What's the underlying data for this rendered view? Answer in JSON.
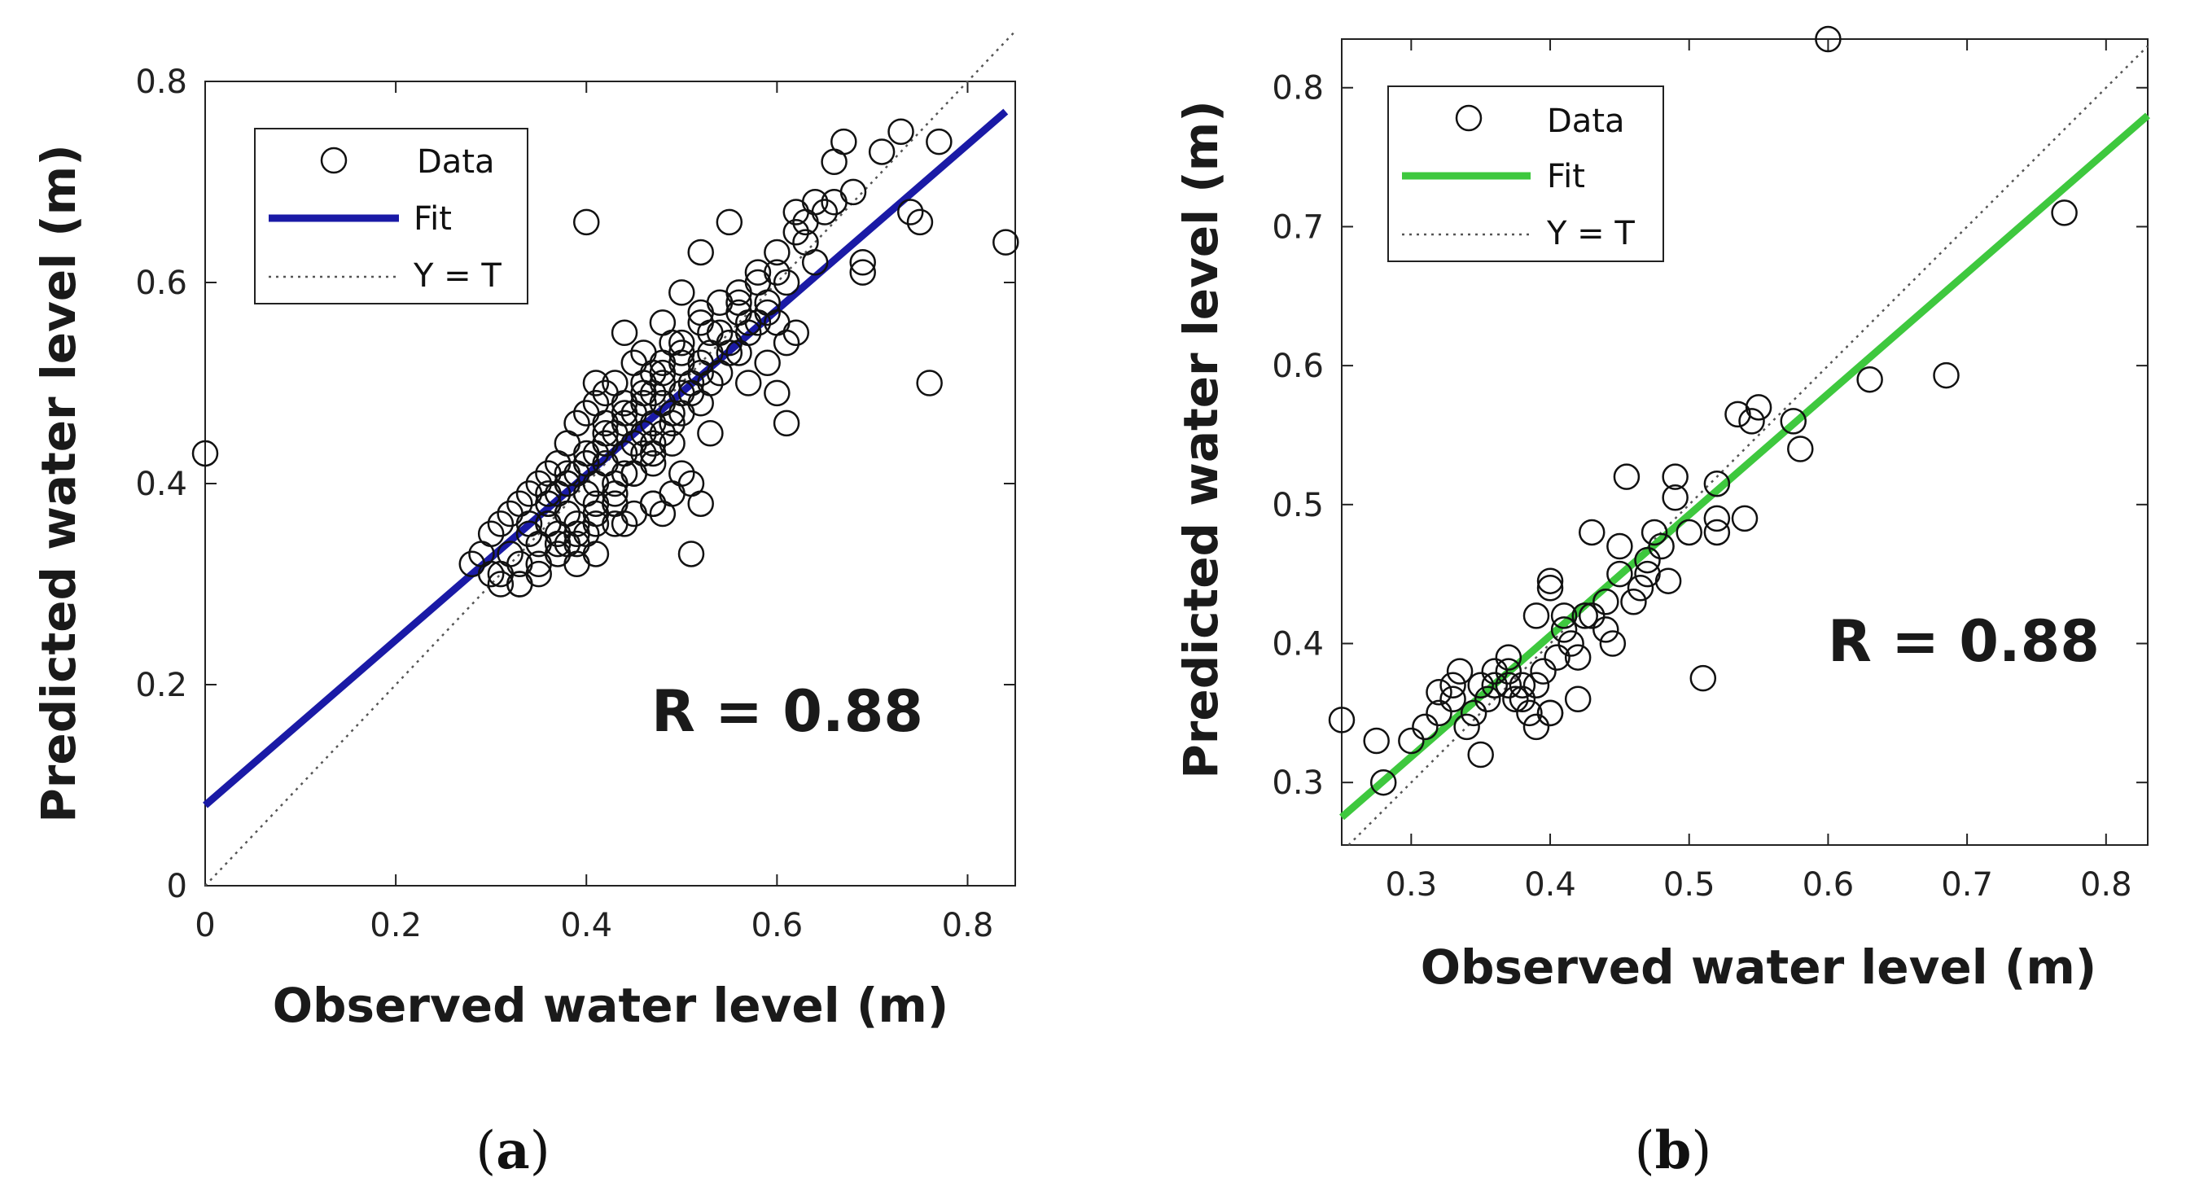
{
  "chart_data": [
    {
      "id": "a",
      "type": "scatter",
      "panel_label": "a",
      "xlabel": "Observed water level (m)",
      "ylabel": "Predicted water level (m)",
      "xlim": [
        0,
        0.85
      ],
      "ylim": [
        0,
        0.8
      ],
      "xticks": [
        0,
        0.2,
        0.4,
        0.6,
        0.8
      ],
      "yticks": [
        0,
        0.2,
        0.4,
        0.6,
        0.8
      ],
      "xtick_labels": [
        "0",
        "0.2",
        "0.4",
        "0.6",
        "0.8"
      ],
      "ytick_labels": [
        "0",
        "0.2",
        "0.4",
        "0.6",
        "0.8"
      ],
      "annotation": "R = 0.88",
      "legend": {
        "placement": "top-left",
        "entries": [
          "Data",
          "Fit",
          "Y = T"
        ]
      },
      "fit": {
        "color": "#1a1aa6",
        "x": [
          0,
          0.84
        ],
        "y": [
          0.08,
          0.77
        ]
      },
      "identity": {
        "x": [
          0,
          0.85
        ],
        "y": [
          0,
          0.85
        ]
      },
      "series": [
        {
          "name": "Data",
          "marker": "circle-open",
          "x": [
            0.0,
            0.4,
            0.84,
            0.76,
            0.74,
            0.73,
            0.77,
            0.71,
            0.75,
            0.66,
            0.67,
            0.69,
            0.69,
            0.62,
            0.63,
            0.64,
            0.6,
            0.61,
            0.58,
            0.62,
            0.59,
            0.6,
            0.56,
            0.55,
            0.58,
            0.52,
            0.53,
            0.5,
            0.48,
            0.49,
            0.46,
            0.47,
            0.44,
            0.45,
            0.43,
            0.42,
            0.41,
            0.4,
            0.39,
            0.38,
            0.37,
            0.36,
            0.35,
            0.34,
            0.33,
            0.32,
            0.31,
            0.3,
            0.29,
            0.28,
            0.3,
            0.31,
            0.33,
            0.35,
            0.36,
            0.38,
            0.4,
            0.41,
            0.42,
            0.44,
            0.46,
            0.47,
            0.48,
            0.5,
            0.51,
            0.52,
            0.53,
            0.55,
            0.57,
            0.56,
            0.54,
            0.52,
            0.49,
            0.47,
            0.45,
            0.43,
            0.41,
            0.39,
            0.37,
            0.35,
            0.33,
            0.31,
            0.34,
            0.36,
            0.38,
            0.4,
            0.42,
            0.44,
            0.46,
            0.48,
            0.5,
            0.52,
            0.54,
            0.56,
            0.58,
            0.6,
            0.62,
            0.65,
            0.63,
            0.64,
            0.61,
            0.59,
            0.57,
            0.55,
            0.53,
            0.51,
            0.49,
            0.47,
            0.45,
            0.43,
            0.41,
            0.39,
            0.37,
            0.35,
            0.33,
            0.32,
            0.34,
            0.36,
            0.38,
            0.4,
            0.42,
            0.44,
            0.46,
            0.48,
            0.5,
            0.45,
            0.43,
            0.41,
            0.39,
            0.37,
            0.44,
            0.42,
            0.4,
            0.38,
            0.36,
            0.46,
            0.48,
            0.5,
            0.52,
            0.49,
            0.47,
            0.45,
            0.43,
            0.41,
            0.39,
            0.51,
            0.53,
            0.47,
            0.52,
            0.49,
            0.51,
            0.5,
            0.48,
            0.47,
            0.44,
            0.57,
            0.59,
            0.6,
            0.61,
            0.66,
            0.68,
            0.36,
            0.38,
            0.4,
            0.37,
            0.39,
            0.41,
            0.43,
            0.45,
            0.47,
            0.43,
            0.42,
            0.41,
            0.44,
            0.46,
            0.48,
            0.5,
            0.52,
            0.54,
            0.56
          ],
          "y": [
            0.43,
            0.66,
            0.64,
            0.5,
            0.67,
            0.75,
            0.74,
            0.73,
            0.66,
            0.72,
            0.74,
            0.62,
            0.61,
            0.67,
            0.66,
            0.68,
            0.49,
            0.46,
            0.6,
            0.55,
            0.58,
            0.61,
            0.57,
            0.66,
            0.56,
            0.63,
            0.55,
            0.59,
            0.56,
            0.54,
            0.53,
            0.51,
            0.55,
            0.52,
            0.5,
            0.49,
            0.5,
            0.47,
            0.46,
            0.44,
            0.42,
            0.41,
            0.4,
            0.39,
            0.38,
            0.37,
            0.36,
            0.35,
            0.33,
            0.32,
            0.31,
            0.3,
            0.32,
            0.34,
            0.36,
            0.37,
            0.39,
            0.4,
            0.42,
            0.43,
            0.45,
            0.46,
            0.48,
            0.49,
            0.5,
            0.52,
            0.53,
            0.54,
            0.56,
            0.58,
            0.55,
            0.51,
            0.47,
            0.44,
            0.41,
            0.38,
            0.36,
            0.34,
            0.33,
            0.31,
            0.3,
            0.31,
            0.35,
            0.38,
            0.4,
            0.43,
            0.44,
            0.47,
            0.5,
            0.51,
            0.54,
            0.57,
            0.58,
            0.59,
            0.61,
            0.63,
            0.65,
            0.67,
            0.64,
            0.62,
            0.6,
            0.57,
            0.55,
            0.53,
            0.5,
            0.49,
            0.46,
            0.43,
            0.41,
            0.39,
            0.37,
            0.35,
            0.34,
            0.32,
            0.3,
            0.33,
            0.36,
            0.39,
            0.41,
            0.42,
            0.45,
            0.48,
            0.49,
            0.52,
            0.53,
            0.44,
            0.4,
            0.38,
            0.36,
            0.35,
            0.46,
            0.44,
            0.42,
            0.4,
            0.38,
            0.48,
            0.5,
            0.52,
            0.56,
            0.39,
            0.38,
            0.37,
            0.36,
            0.33,
            0.32,
            0.4,
            0.45,
            0.42,
            0.38,
            0.44,
            0.33,
            0.41,
            0.37,
            0.38,
            0.36,
            0.5,
            0.52,
            0.56,
            0.54,
            0.68,
            0.69,
            0.36,
            0.34,
            0.35,
            0.39,
            0.41,
            0.43,
            0.45,
            0.47,
            0.49,
            0.38,
            0.46,
            0.48,
            0.41,
            0.43,
            0.45,
            0.47,
            0.48,
            0.51,
            0.53
          ]
        }
      ]
    },
    {
      "id": "b",
      "type": "scatter",
      "panel_label": "b",
      "xlabel": "Observed water level (m)",
      "ylabel": "Predicted water level (m)",
      "xlim": [
        0.25,
        0.83
      ],
      "ylim": [
        0.255,
        0.835
      ],
      "xticks": [
        0.3,
        0.4,
        0.5,
        0.6,
        0.7,
        0.8
      ],
      "yticks": [
        0.3,
        0.4,
        0.5,
        0.6,
        0.7,
        0.8
      ],
      "xtick_labels": [
        "0.3",
        "0.4",
        "0.5",
        "0.6",
        "0.7",
        "0.8"
      ],
      "ytick_labels": [
        "0.3",
        "0.4",
        "0.5",
        "0.6",
        "0.7",
        "0.8"
      ],
      "annotation": "R = 0.88",
      "legend": {
        "placement": "top-left",
        "entries": [
          "Data",
          "Fit",
          "Y = T"
        ]
      },
      "fit": {
        "color": "#3ec83e",
        "x": [
          0.25,
          0.83
        ],
        "y": [
          0.275,
          0.78
        ]
      },
      "identity": {
        "x": [
          0.255,
          0.83
        ],
        "y": [
          0.255,
          0.83
        ]
      },
      "series": [
        {
          "name": "Data",
          "marker": "circle-open",
          "x": [
            0.6,
            0.77,
            0.685,
            0.63,
            0.58,
            0.575,
            0.55,
            0.54,
            0.545,
            0.535,
            0.52,
            0.52,
            0.51,
            0.49,
            0.49,
            0.485,
            0.475,
            0.47,
            0.465,
            0.46,
            0.455,
            0.45,
            0.445,
            0.44,
            0.43,
            0.425,
            0.42,
            0.415,
            0.41,
            0.405,
            0.4,
            0.4,
            0.395,
            0.39,
            0.385,
            0.38,
            0.375,
            0.37,
            0.36,
            0.355,
            0.35,
            0.345,
            0.34,
            0.335,
            0.33,
            0.32,
            0.31,
            0.3,
            0.275,
            0.28,
            0.25,
            0.35,
            0.4,
            0.39,
            0.38,
            0.42,
            0.41,
            0.44,
            0.47,
            0.48,
            0.45,
            0.43,
            0.5,
            0.52,
            0.36,
            0.37,
            0.33,
            0.32,
            0.37,
            0.4,
            0.39
          ],
          "y": [
            0.835,
            0.71,
            0.593,
            0.59,
            0.54,
            0.56,
            0.57,
            0.49,
            0.56,
            0.565,
            0.515,
            0.49,
            0.375,
            0.52,
            0.505,
            0.445,
            0.48,
            0.46,
            0.44,
            0.43,
            0.52,
            0.45,
            0.4,
            0.41,
            0.48,
            0.42,
            0.36,
            0.4,
            0.41,
            0.39,
            0.44,
            0.35,
            0.38,
            0.34,
            0.35,
            0.37,
            0.36,
            0.37,
            0.38,
            0.36,
            0.32,
            0.35,
            0.34,
            0.38,
            0.37,
            0.35,
            0.34,
            0.33,
            0.33,
            0.3,
            0.345,
            0.37,
            0.445,
            0.42,
            0.36,
            0.39,
            0.42,
            0.43,
            0.45,
            0.47,
            0.47,
            0.42,
            0.48,
            0.48,
            0.37,
            0.38,
            0.36,
            0.365,
            0.39,
            0.35,
            0.37
          ]
        }
      ]
    }
  ]
}
